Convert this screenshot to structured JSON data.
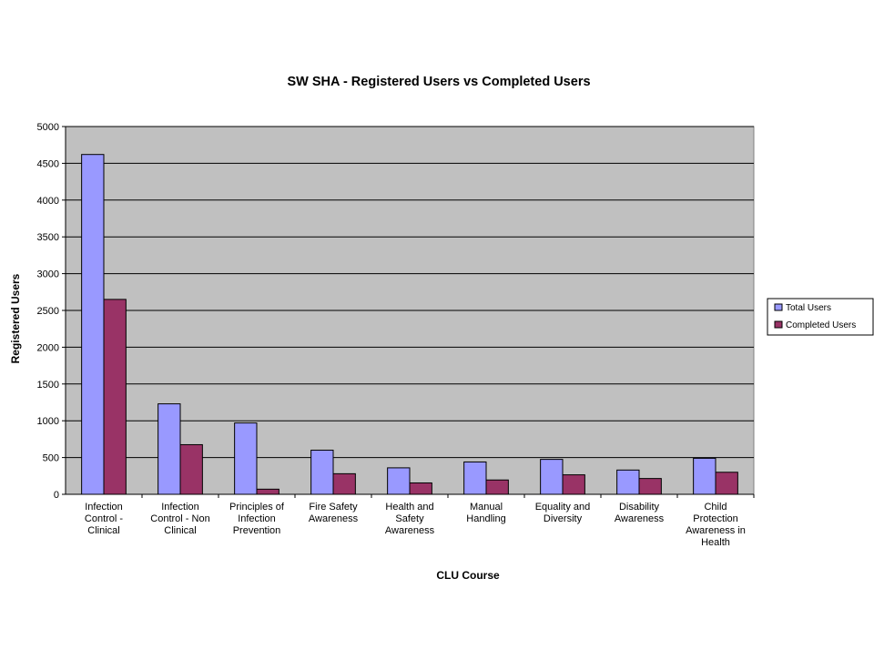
{
  "chart_data": {
    "type": "bar",
    "title": "SW SHA - Registered Users vs Completed Users",
    "xlabel": "CLU Course",
    "ylabel": "Registered Users",
    "ylim": [
      0,
      5000
    ],
    "yticks": [
      0,
      500,
      1000,
      1500,
      2000,
      2500,
      3000,
      3500,
      4000,
      4500,
      5000
    ],
    "grid": true,
    "legend_position": "right",
    "categories": [
      [
        "Infection",
        "Control -",
        "Clinical"
      ],
      [
        "Infection",
        "Control -  Non",
        "Clinical"
      ],
      [
        "Principles of",
        "Infection",
        "Prevention"
      ],
      [
        "Fire Safety",
        "Awareness"
      ],
      [
        "Health and",
        "Safety",
        "Awareness"
      ],
      [
        "Manual",
        "Handling"
      ],
      [
        "Equality and",
        "Diversity"
      ],
      [
        "Disability",
        "Awareness"
      ],
      [
        "Child",
        "Protection",
        "Awareness in",
        "Health"
      ]
    ],
    "series": [
      {
        "name": "Total Users",
        "color": "#9999ff",
        "values": [
          4620,
          1230,
          970,
          600,
          360,
          440,
          475,
          330,
          490
        ]
      },
      {
        "name": "Completed Users",
        "color": "#993366",
        "values": [
          2650,
          675,
          70,
          280,
          155,
          195,
          265,
          215,
          300
        ]
      }
    ]
  }
}
